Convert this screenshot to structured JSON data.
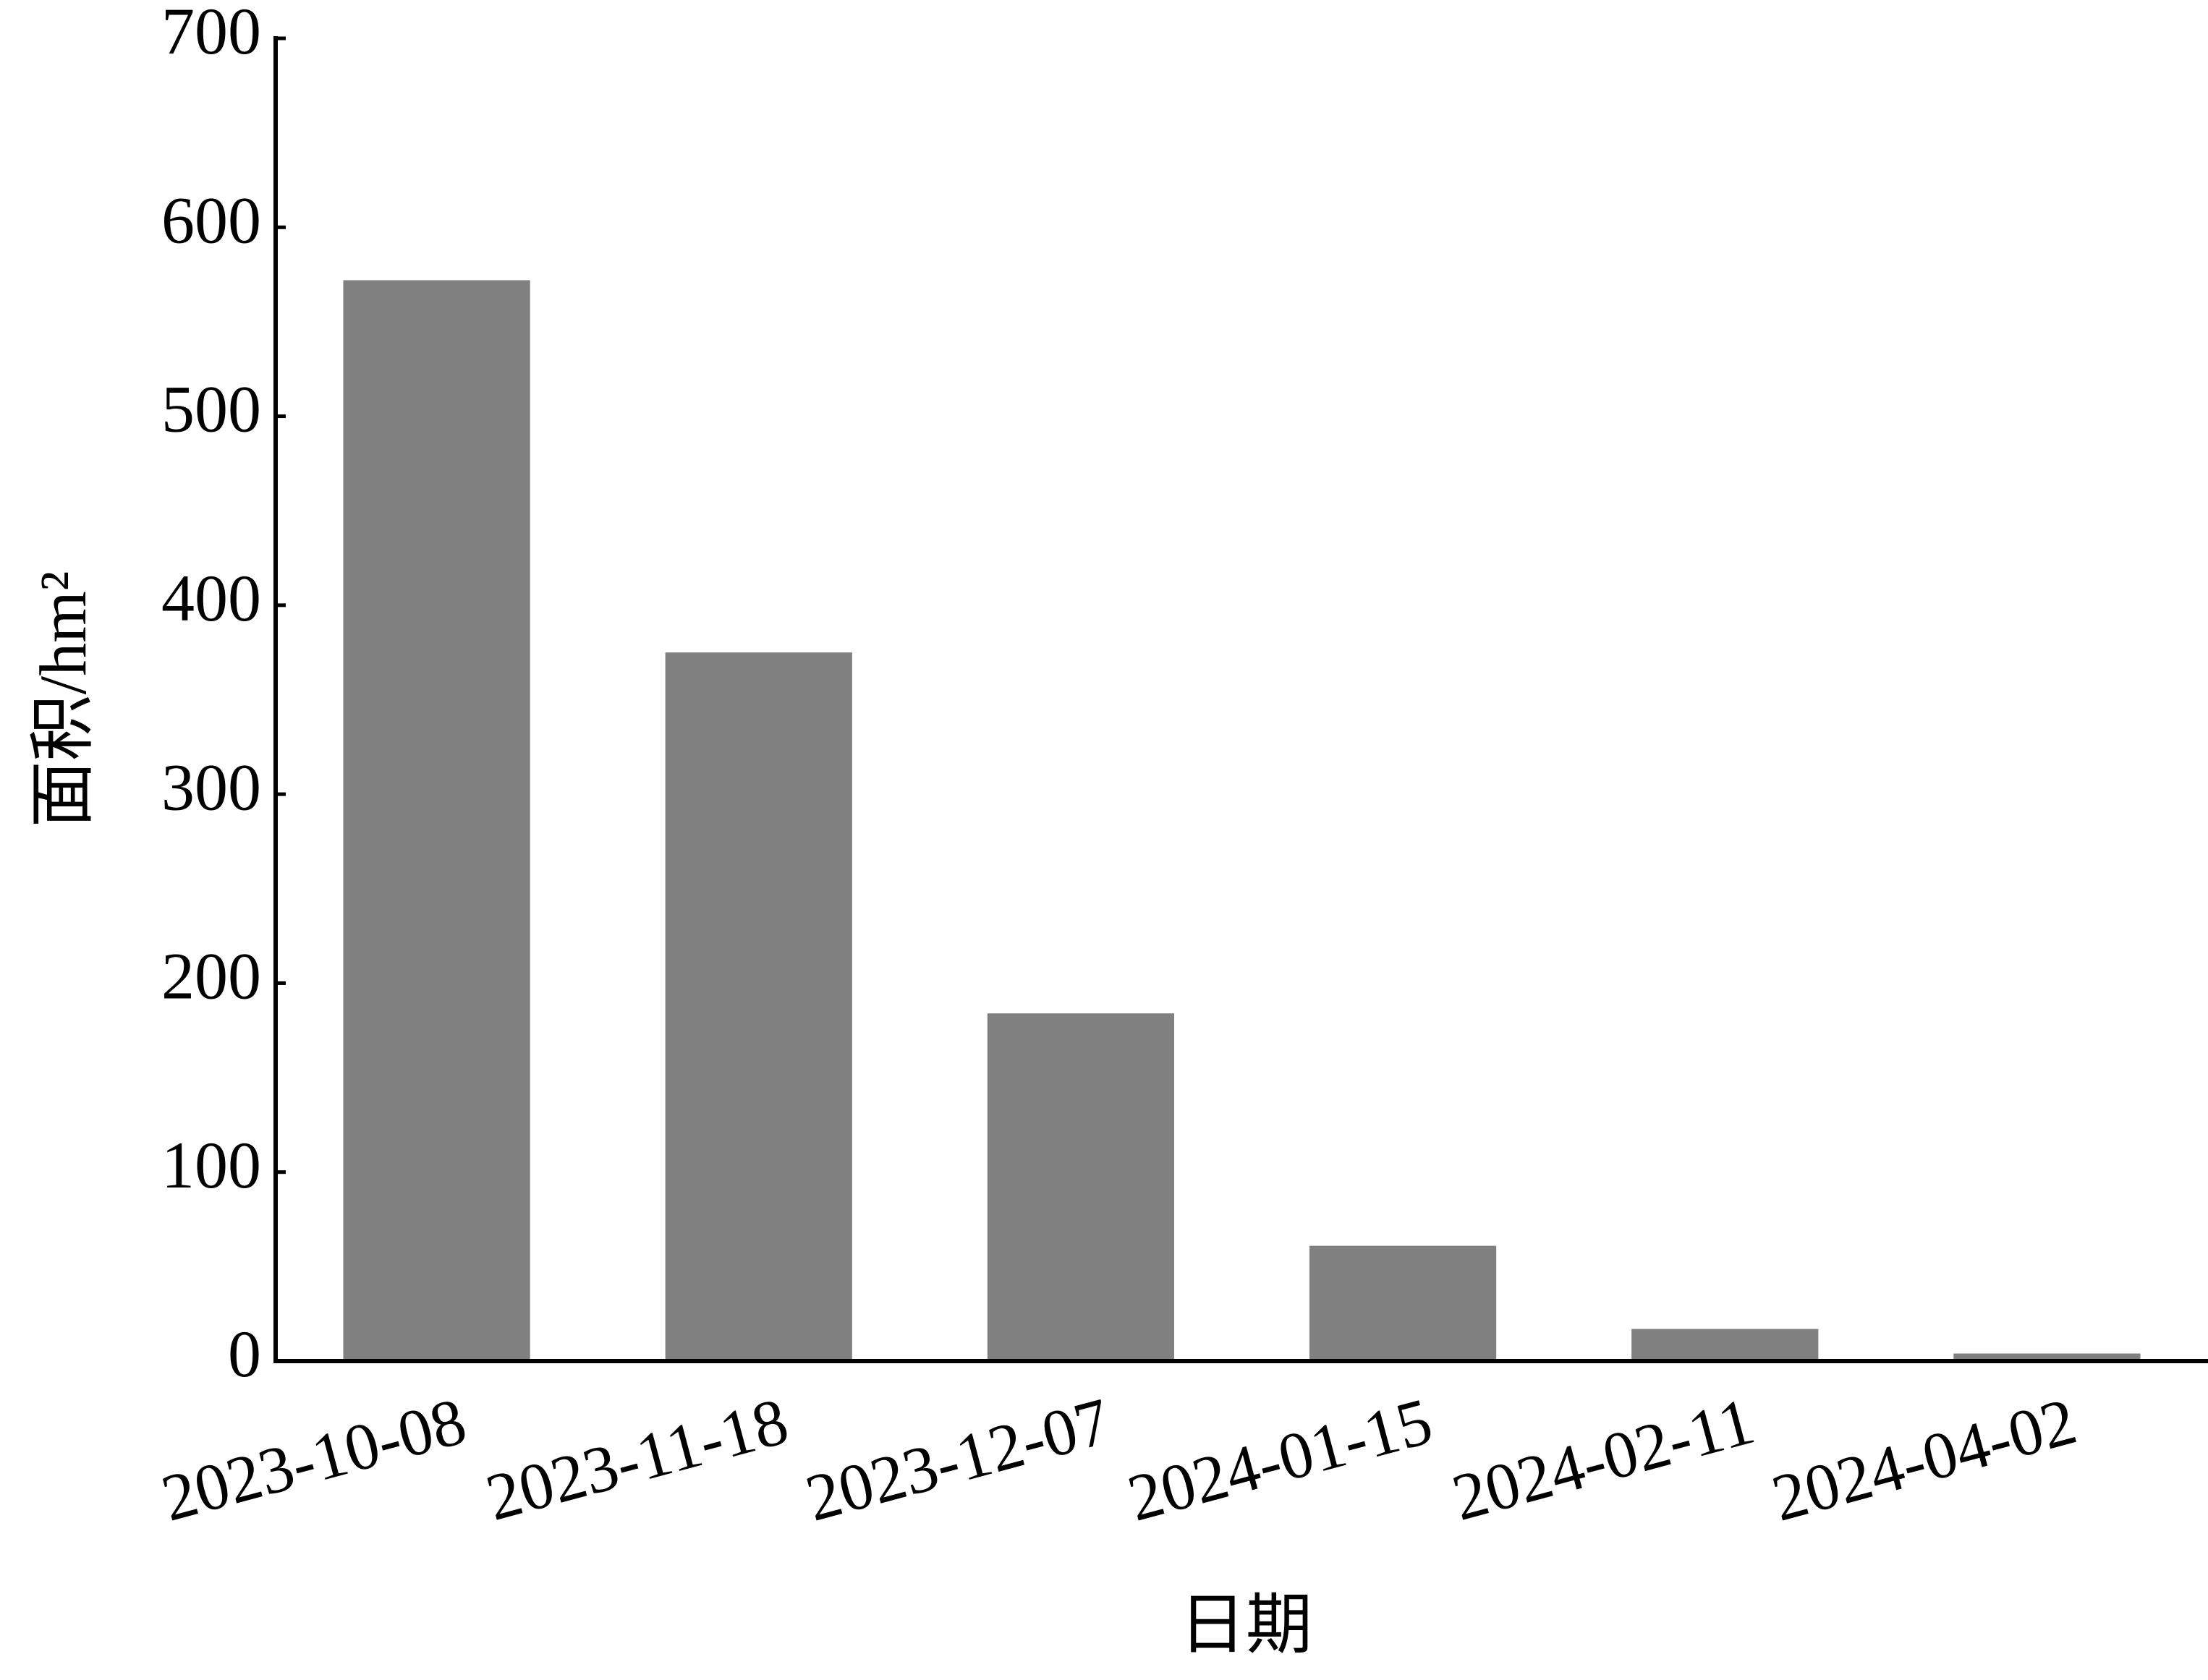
{
  "chart_data": {
    "type": "bar",
    "x_label": "日期",
    "y_label": "面积/hm²",
    "categories": [
      "2023-10-08",
      "2023-11-18",
      "2023-12-07",
      "2024-01-15",
      "2024-02-11",
      "2024-04-02"
    ],
    "values": [
      572,
      375,
      184,
      61,
      17,
      4
    ],
    "color": "#808080",
    "ylim": [
      0,
      700
    ],
    "yticks": [
      0,
      100,
      200,
      300,
      400,
      500,
      600,
      700
    ],
    "grid": false
  }
}
